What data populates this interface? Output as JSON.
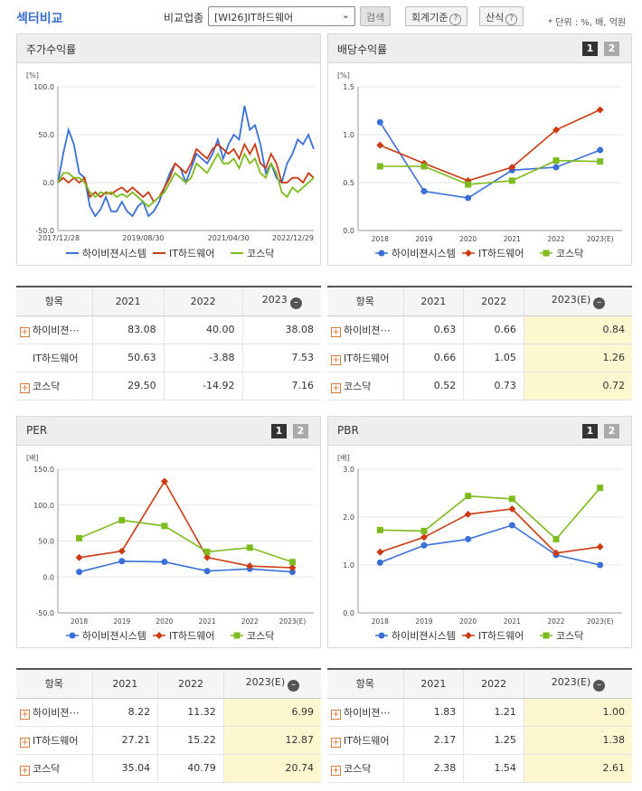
{
  "header": {
    "title": "섹터비교",
    "compare_label": "비교업종",
    "select_value": "[WI26]IT하드웨어",
    "search_label": "검색",
    "accounting_label": "회계기준",
    "formula_label": "산식",
    "unit_note": "* 단위 : %, 배, 억원"
  },
  "colors": {
    "series1": "#3a6fd8",
    "series2": "#cc3a12",
    "series3": "#7dbb1e"
  },
  "stock_chart": {
    "title": "주가수익률",
    "unit": "[%]",
    "legend": [
      "하이비젼시스템",
      "IT하드웨어",
      "코스닥"
    ],
    "chart_data": {
      "type": "line",
      "x_tick_labels": [
        "2017/12/28",
        "2019/08/30",
        "2021/04/30",
        "2022/12/29"
      ],
      "y_tick_labels": [
        "100.0",
        "50.0",
        "0.0",
        "-50.0"
      ],
      "ylim": [
        -50,
        100
      ],
      "series": [
        {
          "name": "하이비젼시스템",
          "values": [
            0,
            30,
            55,
            40,
            10,
            5,
            -25,
            -35,
            -28,
            -15,
            -30,
            -30,
            -20,
            -30,
            -35,
            -25,
            -20,
            -35,
            -30,
            -20,
            -5,
            10,
            20,
            15,
            0,
            15,
            30,
            25,
            20,
            30,
            45,
            25,
            40,
            50,
            45,
            80,
            55,
            60,
            40,
            10,
            20,
            5,
            0,
            20,
            30,
            45,
            40,
            50,
            35
          ]
        },
        {
          "name": "IT하드웨어",
          "values": [
            0,
            5,
            0,
            5,
            0,
            5,
            -15,
            -10,
            -15,
            -10,
            -12,
            -8,
            -5,
            -10,
            -5,
            -10,
            -15,
            -10,
            -20,
            -15,
            -5,
            5,
            20,
            15,
            10,
            20,
            35,
            30,
            25,
            35,
            40,
            35,
            30,
            35,
            25,
            40,
            30,
            40,
            20,
            15,
            30,
            20,
            0,
            0,
            5,
            5,
            0,
            10,
            5
          ]
        },
        {
          "name": "코스닥",
          "values": [
            0,
            10,
            10,
            5,
            5,
            0,
            -10,
            -15,
            -10,
            -12,
            -10,
            -15,
            -12,
            -15,
            -10,
            -15,
            -20,
            -25,
            -20,
            -15,
            -10,
            0,
            10,
            5,
            0,
            5,
            20,
            15,
            10,
            20,
            30,
            20,
            20,
            25,
            15,
            30,
            20,
            25,
            10,
            5,
            20,
            10,
            -10,
            -15,
            -5,
            -10,
            -5,
            0,
            5
          ]
        }
      ]
    }
  },
  "dividend_chart": {
    "title": "배당수익률",
    "unit": "[%]",
    "legend": [
      "하이비젼시스템",
      "IT하드웨어",
      "코스닥"
    ],
    "chart_data": {
      "type": "line",
      "categories": [
        "2018",
        "2019",
        "2020",
        "2021",
        "2022",
        "2023(E)"
      ],
      "y_tick_labels": [
        "1.5",
        "1.0",
        "0.5",
        "0.0"
      ],
      "ylim": [
        0,
        1.5
      ],
      "series": [
        {
          "name": "하이비젼시스템",
          "values": [
            1.13,
            0.41,
            0.34,
            0.63,
            0.66,
            0.84
          ]
        },
        {
          "name": "IT하드웨어",
          "values": [
            0.89,
            0.7,
            0.52,
            0.66,
            1.05,
            1.26
          ]
        },
        {
          "name": "코스닥",
          "values": [
            0.67,
            0.67,
            0.48,
            0.52,
            0.73,
            0.72
          ]
        }
      ]
    }
  },
  "per_chart": {
    "title": "PER",
    "unit": "[배]",
    "legend": [
      "하이비젼시스템",
      "IT하드웨어",
      "코스닥"
    ],
    "chart_data": {
      "type": "line",
      "categories": [
        "2018",
        "2019",
        "2020",
        "2021",
        "2022",
        "2023(E)"
      ],
      "y_tick_labels": [
        "150.0",
        "100.0",
        "50.0",
        "0.0",
        "-50.0"
      ],
      "ylim": [
        -50,
        150
      ],
      "series": [
        {
          "name": "하이비젼시스템",
          "values": [
            7,
            22,
            21,
            8.22,
            11.32,
            6.99
          ]
        },
        {
          "name": "IT하드웨어",
          "values": [
            27,
            36,
            133,
            27.21,
            15.22,
            12.87
          ]
        },
        {
          "name": "코스닥",
          "values": [
            54,
            79,
            71,
            35.04,
            40.79,
            20.74
          ]
        }
      ]
    }
  },
  "pbr_chart": {
    "title": "PBR",
    "unit": "[배]",
    "legend": [
      "하이비젼시스템",
      "IT하드웨어",
      "코스닥"
    ],
    "chart_data": {
      "type": "line",
      "categories": [
        "2018",
        "2019",
        "2020",
        "2021",
        "2022",
        "2023(E)"
      ],
      "y_tick_labels": [
        "3.0",
        "2.0",
        "1.0",
        "0.0"
      ],
      "ylim": [
        0,
        3
      ],
      "series": [
        {
          "name": "하이비젼시스템",
          "values": [
            1.05,
            1.41,
            1.54,
            1.83,
            1.21,
            1.0
          ]
        },
        {
          "name": "IT하드웨어",
          "values": [
            1.27,
            1.58,
            2.06,
            2.17,
            1.25,
            1.38
          ]
        },
        {
          "name": "코스닥",
          "values": [
            1.73,
            1.71,
            2.44,
            2.38,
            1.54,
            2.61
          ]
        }
      ]
    }
  },
  "tables": {
    "stock": {
      "headers": [
        "항목",
        "2021",
        "2022",
        "2023"
      ],
      "rows": [
        {
          "name": "하이비젼⋯",
          "values": [
            "83.08",
            "40.00",
            "38.08"
          ]
        },
        {
          "name": "IT하드웨어",
          "values": [
            "50.63",
            "-3.88",
            "7.53"
          ]
        },
        {
          "name": "코스닥",
          "values": [
            "29.50",
            "-14.92",
            "7.16"
          ]
        }
      ]
    },
    "dividend": {
      "headers": [
        "항목",
        "2021",
        "2022",
        "2023(E)"
      ],
      "rows": [
        {
          "name": "하이비젼⋯",
          "values": [
            "0.63",
            "0.66",
            "0.84"
          ]
        },
        {
          "name": "IT하드웨어",
          "values": [
            "0.66",
            "1.05",
            "1.26"
          ]
        },
        {
          "name": "코스닥",
          "values": [
            "0.52",
            "0.73",
            "0.72"
          ]
        }
      ]
    },
    "per": {
      "headers": [
        "항목",
        "2021",
        "2022",
        "2023(E)"
      ],
      "rows": [
        {
          "name": "하이비젼⋯",
          "values": [
            "8.22",
            "11.32",
            "6.99"
          ]
        },
        {
          "name": "IT하드웨어",
          "values": [
            "27.21",
            "15.22",
            "12.87"
          ]
        },
        {
          "name": "코스닥",
          "values": [
            "35.04",
            "40.79",
            "20.74"
          ]
        }
      ]
    },
    "pbr": {
      "headers": [
        "항목",
        "2021",
        "2022",
        "2023(E)"
      ],
      "rows": [
        {
          "name": "하이비젼⋯",
          "values": [
            "1.83",
            "1.21",
            "1.00"
          ]
        },
        {
          "name": "IT하드웨어",
          "values": [
            "2.17",
            "1.25",
            "1.38"
          ]
        },
        {
          "name": "코스닥",
          "values": [
            "2.38",
            "1.54",
            "2.61"
          ]
        }
      ]
    }
  }
}
